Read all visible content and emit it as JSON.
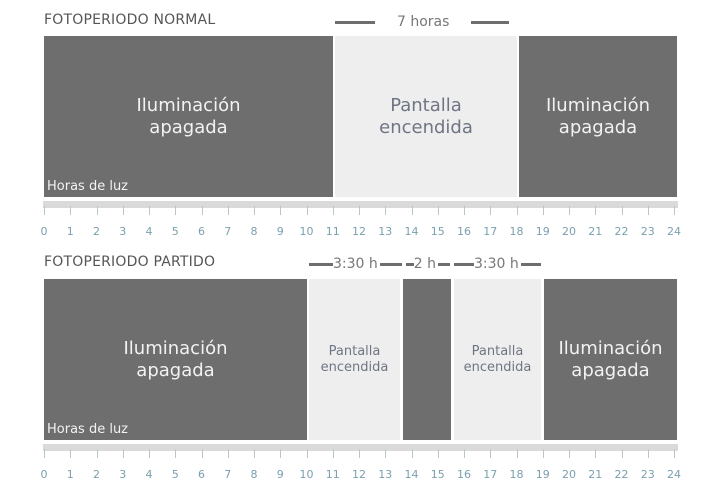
{
  "normal": {
    "title": "FOTOPERIODO NORMAL",
    "duration": "7 horas",
    "blocks": [
      {
        "label": "Iluminación apagada"
      },
      {
        "label": "Pantalla encendida"
      },
      {
        "label": "Iluminación apagada"
      }
    ],
    "footer": "Horas de luz"
  },
  "partido": {
    "title": "FOTOPERIODO PARTIDO",
    "durations": [
      "3:30 h",
      "2 h",
      "3:30 h"
    ],
    "blocks": [
      {
        "label": "Iluminación apagada"
      },
      {
        "label": "Pantalla encendida"
      },
      {
        "label": ""
      },
      {
        "label": "Pantalla encendida"
      },
      {
        "label": "Iluminación apagada"
      }
    ],
    "footer": "Horas de luz"
  },
  "hours": [
    "0",
    "1",
    "2",
    "3",
    "4",
    "5",
    "6",
    "7",
    "8",
    "9",
    "10",
    "11",
    "12",
    "13",
    "14",
    "15",
    "16",
    "17",
    "18",
    "19",
    "20",
    "21",
    "22",
    "23",
    "24"
  ],
  "colors": {
    "off": "#6e6e6e",
    "on": "#eeeeee"
  }
}
